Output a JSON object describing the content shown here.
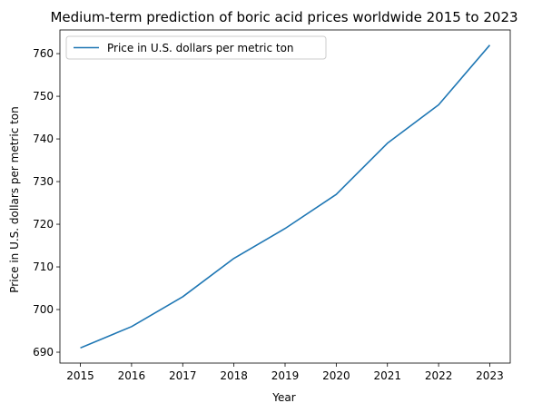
{
  "chart_data": {
    "type": "line",
    "title": "Medium-term prediction of boric acid prices worldwide 2015 to 2023",
    "xlabel": "Year",
    "ylabel": "Price in U.S. dollars per metric ton",
    "x": [
      "2015",
      "2016",
      "2017",
      "2018",
      "2019",
      "2020",
      "2021",
      "2022",
      "2023"
    ],
    "series": [
      {
        "name": "Price in U.S. dollars per metric ton",
        "values": [
          691,
          696,
          703,
          712,
          719,
          727,
          739,
          748,
          762
        ],
        "color": "#1f77b4"
      }
    ],
    "yticks": [
      690,
      700,
      710,
      720,
      730,
      740,
      750,
      760
    ],
    "ylim": [
      687.45,
      765.55
    ],
    "xlim": [
      -0.4,
      8.4
    ],
    "grid": false,
    "legend": "top-left"
  }
}
